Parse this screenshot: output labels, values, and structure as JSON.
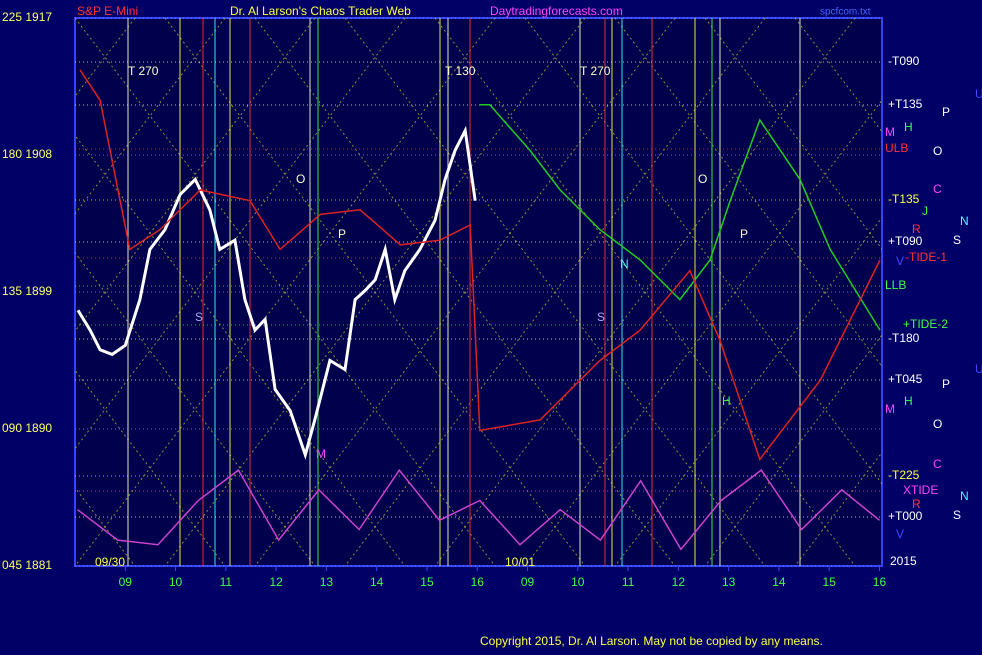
{
  "chart_data": {
    "type": "line",
    "symbol": "S&P E-Mini",
    "title": "Dr. Al Larson's Chaos Trader Web",
    "site": "Daytradingforecasts.com",
    "file": "spcfcom.txt",
    "copyright": "Copyright 2015, Dr. Al Larson. May not be copied by any means.",
    "ylim": [
      1881,
      1917
    ],
    "yticks": [
      {
        "value": 1917,
        "label": "225 1917"
      },
      {
        "value": 1908,
        "label": "180 1908"
      },
      {
        "value": 1899,
        "label": "135 1899"
      },
      {
        "value": 1890,
        "label": "090 1890"
      },
      {
        "value": 1881,
        "label": "045 1881"
      }
    ],
    "xlim": [
      8.0,
      24.05
    ],
    "xticks": [
      {
        "value": 9,
        "label": "09"
      },
      10,
      11,
      12,
      13,
      14,
      15,
      16,
      {
        "value": 17,
        "label": "09"
      },
      {
        "value": 18,
        "label": "10"
      },
      {
        "value": 19,
        "label": "11"
      },
      {
        "value": 20,
        "label": "12"
      },
      {
        "value": 21,
        "label": "13"
      },
      {
        "value": 22,
        "label": "14"
      },
      {
        "value": 23,
        "label": "15"
      },
      {
        "value": 24,
        "label": "16"
      }
    ],
    "series": [
      {
        "color": "#ffffff",
        "x": [
          8.06,
          8.3,
          8.5,
          8.74,
          9.0,
          9.29,
          9.49,
          9.79,
          10.09,
          10.39,
          10.68,
          10.88,
          11.18,
          11.38,
          11.58,
          11.78,
          11.98,
          12.28,
          12.58,
          12.77,
          13.07,
          13.37,
          13.57,
          13.77,
          13.97,
          14.17,
          14.36,
          14.56,
          14.86,
          15.16,
          15.36,
          15.56,
          15.76,
          15.96
        ],
        "values": [
          1897.8,
          1896.5,
          1895.2,
          1894.9,
          1895.5,
          1898.5,
          1901.8,
          1903.1,
          1905.4,
          1906.4,
          1904.4,
          1901.8,
          1902.4,
          1898.5,
          1896.5,
          1897.2,
          1892.6,
          1891.2,
          1888.3,
          1890.6,
          1894.5,
          1893.9,
          1898.5,
          1899.1,
          1899.8,
          1901.8,
          1898.5,
          1900.4,
          1901.8,
          1903.7,
          1906.4,
          1908.3,
          1909.6,
          1905.0
        ]
      },
      {
        "color": "#22cc22",
        "x": [
          16.05,
          16.25,
          17.05,
          17.65,
          18.44,
          19.24,
          20.03,
          20.63,
          21.03,
          21.62,
          22.42,
          23.02,
          24.01
        ],
        "values": [
          1911.3,
          1911.3,
          1908.3,
          1905.7,
          1903.1,
          1901.1,
          1898.5,
          1901.1,
          1905.0,
          1910.3,
          1906.4,
          1901.8,
          1896.5
        ]
      },
      {
        "color": "#dd2222",
        "x": [
          8.1,
          8.5,
          9.09,
          9.69,
          10.49,
          11.48,
          12.08,
          12.88,
          13.67,
          14.47,
          15.26,
          15.86,
          16.05,
          17.25,
          18.44,
          19.24,
          20.23,
          20.83,
          21.62,
          22.82,
          24.01
        ],
        "values": [
          1913.6,
          1911.6,
          1901.8,
          1903.1,
          1905.7,
          1905.0,
          1901.8,
          1904.1,
          1904.4,
          1902.1,
          1902.4,
          1903.4,
          1889.9,
          1890.6,
          1894.5,
          1896.5,
          1900.4,
          1895.8,
          1888.0,
          1893.2,
          1901.1
        ]
      },
      {
        "color": "#cc44cc",
        "x": [
          8.05,
          8.85,
          9.65,
          10.45,
          11.25,
          12.05,
          12.85,
          13.65,
          14.45,
          15.25,
          16.05,
          16.85,
          17.65,
          18.45,
          19.25,
          20.05,
          20.85,
          21.65,
          22.45,
          23.25,
          24.0
        ],
        "values": [
          1884.7,
          1882.7,
          1882.4,
          1885.3,
          1887.3,
          1882.7,
          1886.0,
          1883.4,
          1887.3,
          1884.0,
          1885.3,
          1882.4,
          1884.7,
          1882.7,
          1886.6,
          1882.1,
          1885.3,
          1887.3,
          1883.4,
          1886.0,
          1884.0
        ]
      }
    ],
    "annotations": [
      "T  270",
      "T  130",
      "T  270",
      "O",
      "P",
      "S",
      "M",
      "O",
      "P",
      "S",
      "N",
      "H",
      "09/30",
      "10/01"
    ],
    "right_labels": [
      "U",
      "P",
      "-T090",
      "+T135",
      "M",
      "H",
      "ULB",
      "O",
      "C",
      "-T135",
      "J",
      "N",
      "R",
      "+T090",
      "S",
      "V",
      "-TIDE-1",
      "LLB",
      "+TIDE-2",
      "-T180",
      "+T045",
      "P",
      "U",
      "M",
      "H",
      "O",
      "C",
      "-T225",
      "XTIDE",
      "N",
      "R",
      "+T000",
      "S",
      "V",
      "2015"
    ]
  }
}
